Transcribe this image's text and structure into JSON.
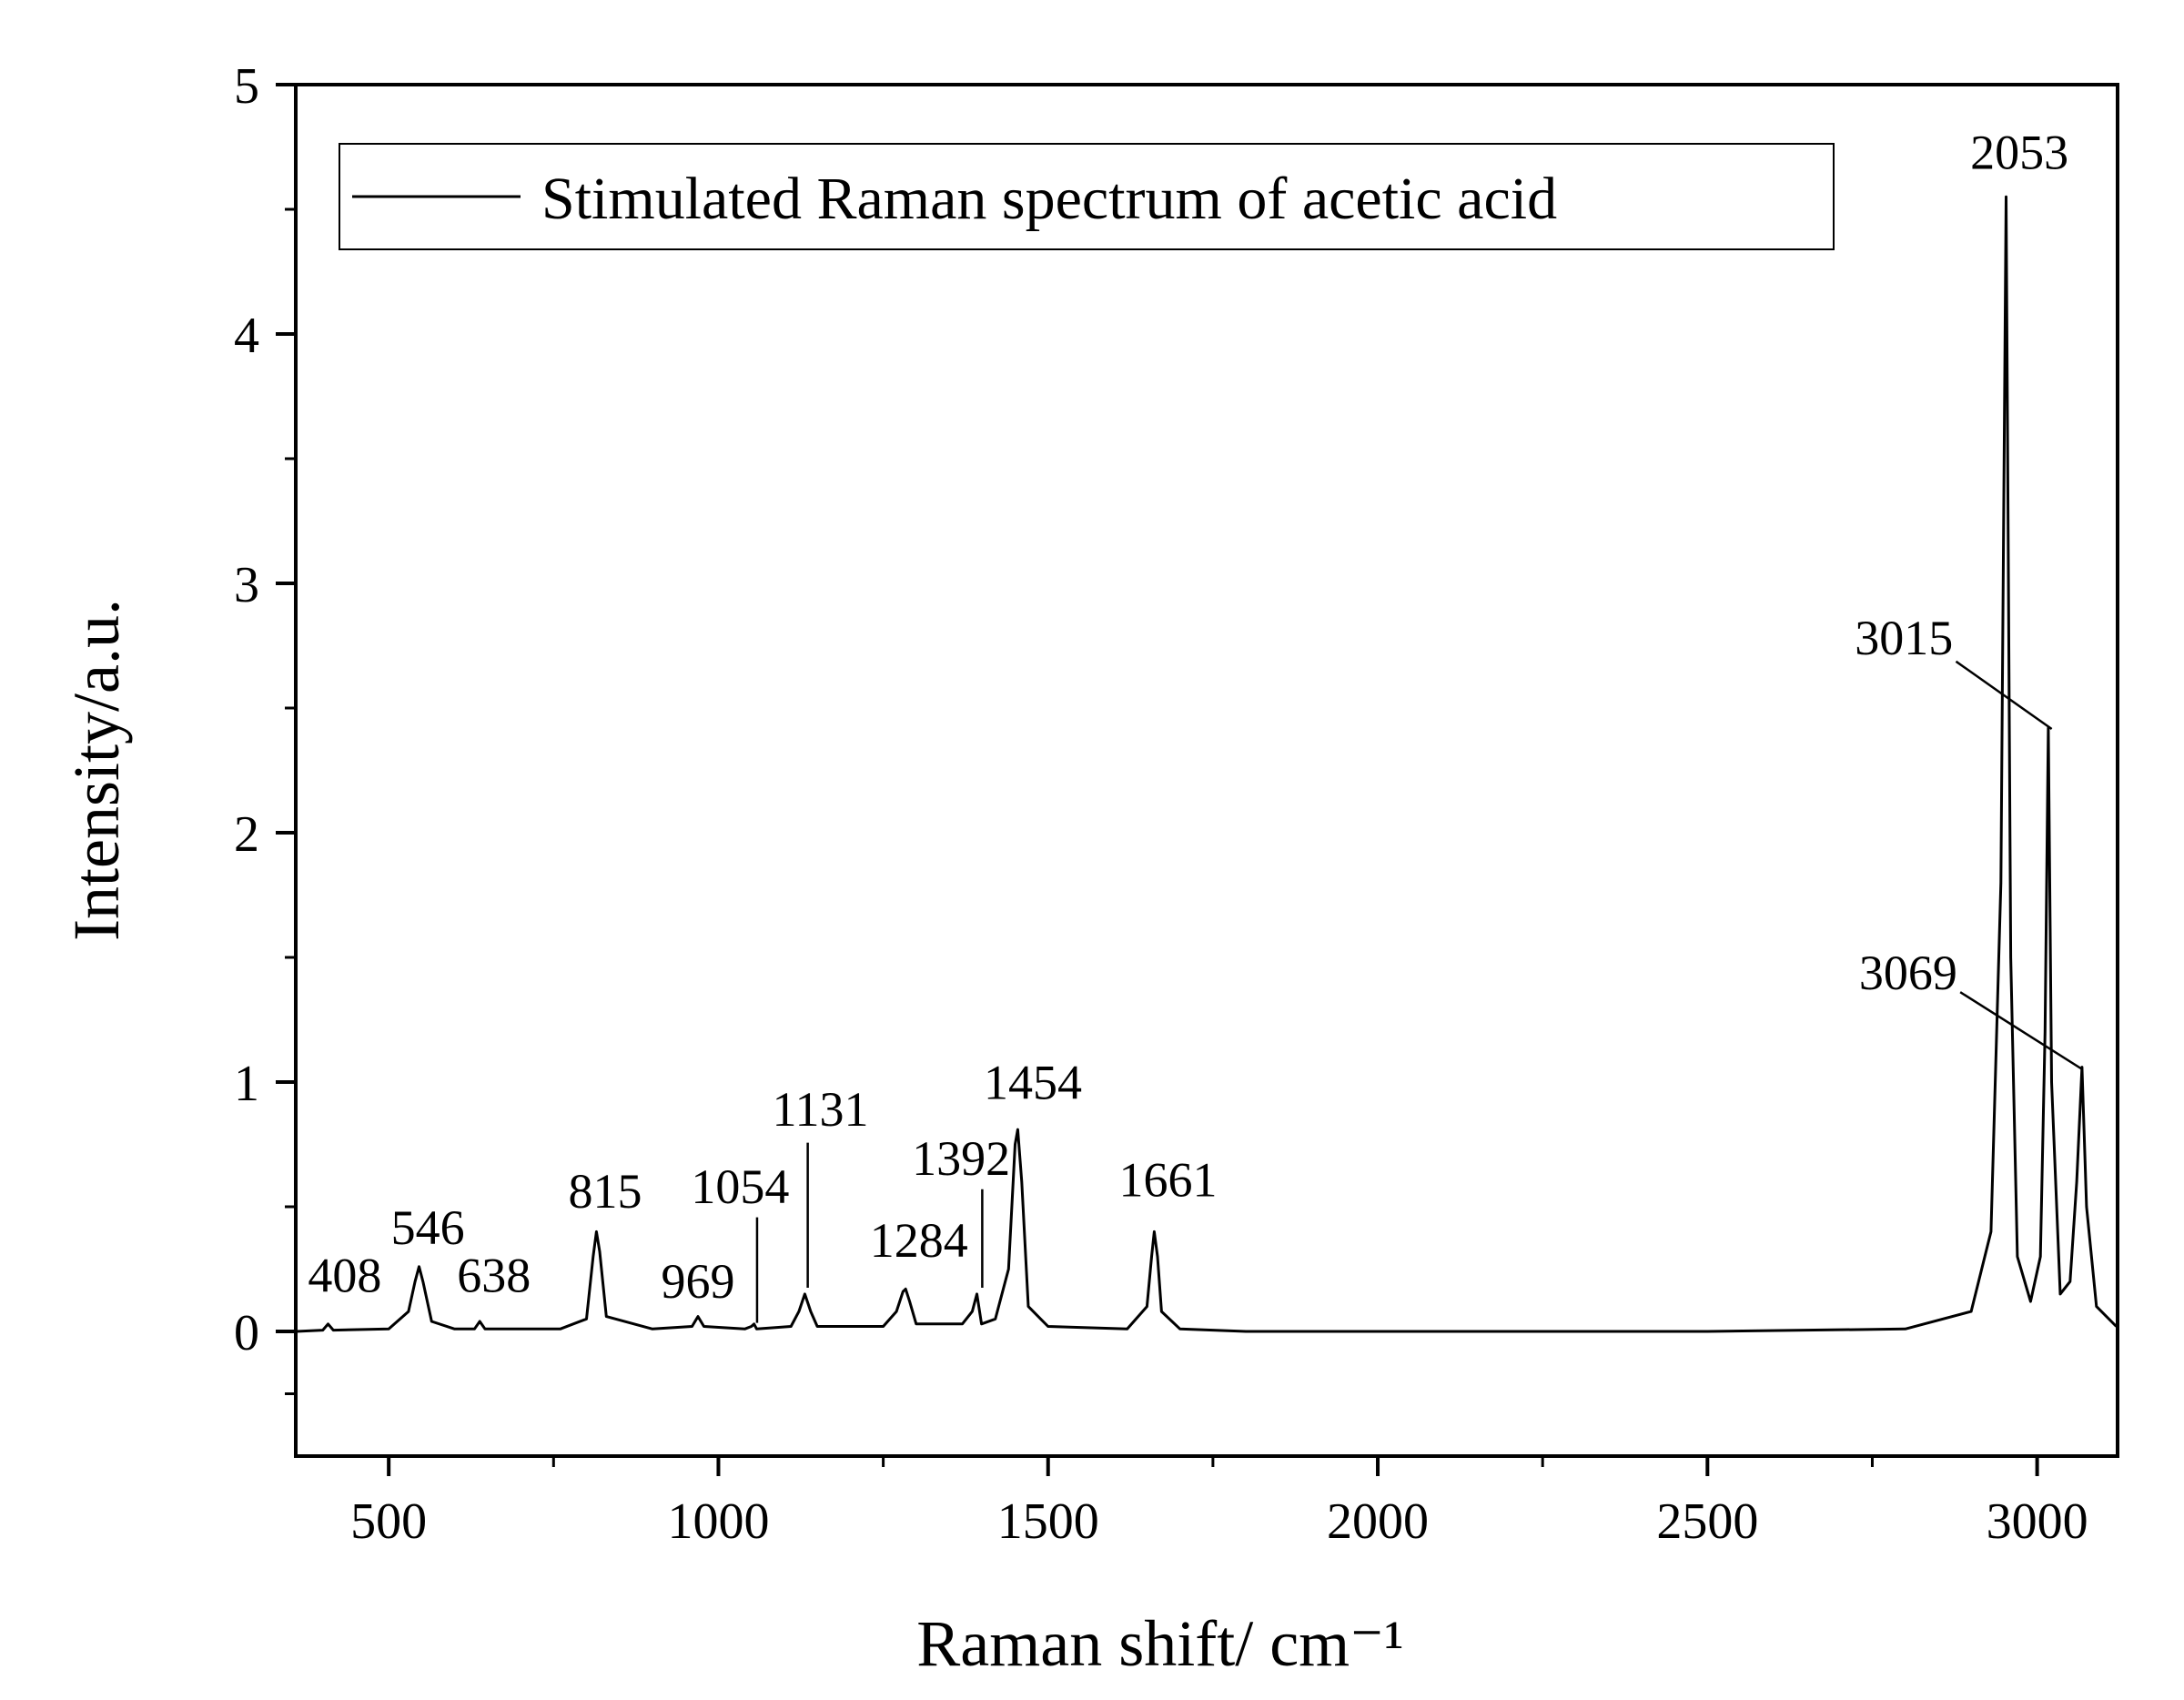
{
  "chart_data": {
    "type": "line",
    "xlabel": "Raman shift/ cm⁻¹",
    "ylabel": "Intensity/a.u.",
    "xlim": [
      359,
      3122
    ],
    "ylim": [
      -0.5,
      5
    ],
    "xticks": [
      500,
      1000,
      1500,
      2000,
      2500,
      3000
    ],
    "yticks": [
      0,
      1,
      2,
      3,
      4,
      5
    ],
    "legend": "top-left",
    "series": [
      {
        "name": "Stimulated Raman spectrum of acetic acid",
        "color": "#000000",
        "x": [
          360,
          400,
          408,
          416,
          500,
          530,
          540,
          546,
          552,
          565,
          600,
          630,
          638,
          646,
          760,
          800,
          810,
          815,
          820,
          830,
          900,
          960,
          969,
          978,
          1040,
          1050,
          1054,
          1058,
          1110,
          1122,
          1131,
          1140,
          1150,
          1250,
          1270,
          1280,
          1284,
          1290,
          1300,
          1370,
          1385,
          1392,
          1399,
          1420,
          1440,
          1450,
          1454,
          1460,
          1470,
          1500,
          1620,
          1650,
          1657,
          1661,
          1666,
          1672,
          1700,
          1800,
          2500,
          2800,
          2900,
          2930,
          2945,
          2953,
          2960,
          2970,
          2990,
          3005,
          3012,
          3017,
          3022,
          3035,
          3050,
          3060,
          3068,
          3075,
          3090,
          3120
        ],
        "values": [
          0,
          0.005,
          0.03,
          0.005,
          0.01,
          0.08,
          0.2,
          0.26,
          0.2,
          0.04,
          0.01,
          0.01,
          0.04,
          0.01,
          0.01,
          0.05,
          0.3,
          0.4,
          0.32,
          0.06,
          0.01,
          0.02,
          0.06,
          0.02,
          0.01,
          0.02,
          0.03,
          0.01,
          0.02,
          0.08,
          0.15,
          0.08,
          0.02,
          0.02,
          0.08,
          0.16,
          0.17,
          0.12,
          0.03,
          0.03,
          0.08,
          0.15,
          0.03,
          0.05,
          0.25,
          0.75,
          0.81,
          0.6,
          0.1,
          0.02,
          0.01,
          0.1,
          0.3,
          0.4,
          0.3,
          0.08,
          0.01,
          0,
          0,
          0.01,
          0.08,
          0.4,
          1.8,
          4.55,
          1.5,
          0.3,
          0.12,
          0.3,
          1.2,
          2.42,
          1.0,
          0.15,
          0.2,
          0.6,
          1.06,
          0.5,
          0.1,
          0.02
        ]
      }
    ],
    "annotations": [
      "408",
      "546",
      "638",
      "815",
      "969",
      "1054",
      "1131",
      "1284",
      "1392",
      "1454",
      "1661",
      "2053",
      "3015",
      "3069"
    ]
  }
}
